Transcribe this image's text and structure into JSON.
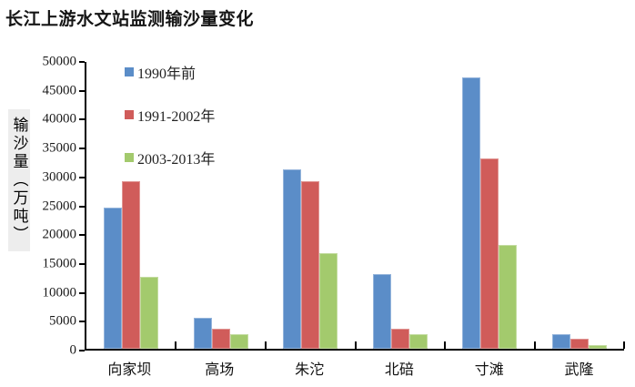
{
  "title": "长江上游水文站监测输沙量变化",
  "colors": {
    "series1": "#5b8dc8",
    "series2": "#d05c5a",
    "series3": "#a3ca6d",
    "axis": "#000000",
    "ylabel_bg": "#ededed"
  },
  "chart_data": {
    "type": "bar",
    "title": "长江上游水文站监测输沙量变化",
    "xlabel": "",
    "ylabel": "输沙量（万吨）",
    "categories": [
      "向家坝",
      "高场",
      "朱沱",
      "北碚",
      "寸滩",
      "武隆"
    ],
    "series": [
      {
        "name": "1990年前",
        "color": "#5b8dc8",
        "values": [
          24500,
          5300,
          31000,
          13000,
          47000,
          2600
        ]
      },
      {
        "name": "1991-2002年",
        "color": "#d05c5a",
        "values": [
          29000,
          3500,
          29000,
          3400,
          33000,
          1800
        ]
      },
      {
        "name": "2003-2013年",
        "color": "#a3ca6d",
        "values": [
          12500,
          2500,
          16500,
          2600,
          18000,
          700
        ]
      }
    ],
    "ylim": [
      0,
      50000
    ],
    "ytick_step": 5000,
    "ytick_labels": [
      "0",
      "5000",
      "10000",
      "15000",
      "20000",
      "25000",
      "30000",
      "35000",
      "40000",
      "45000",
      "50000"
    ],
    "grid": false,
    "legend_position": "top-left-inside"
  }
}
